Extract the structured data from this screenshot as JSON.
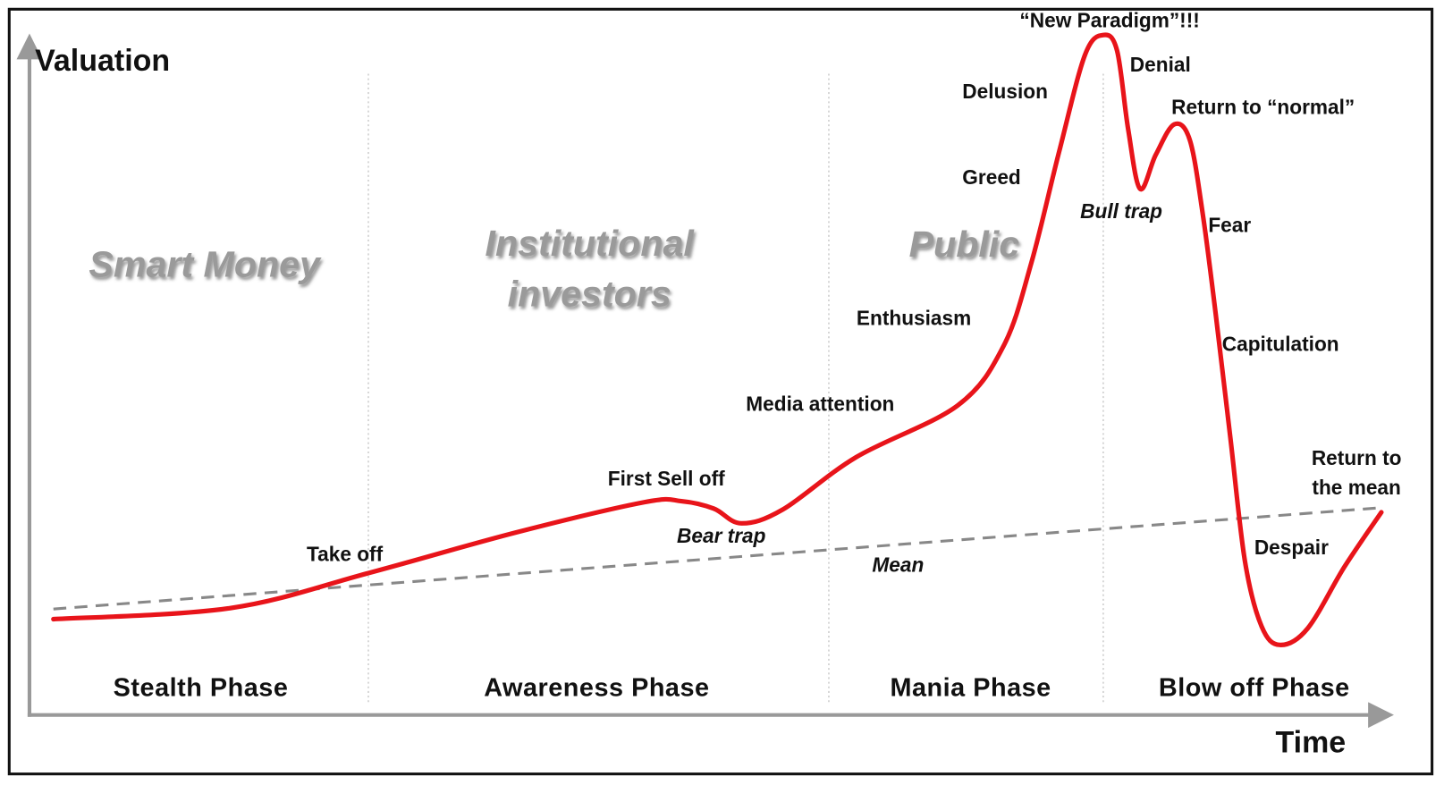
{
  "axes": {
    "y_label": "Valuation",
    "x_label": "Time"
  },
  "groups": [
    {
      "lines": [
        "Smart Money"
      ]
    },
    {
      "lines": [
        "Institutional",
        "investors"
      ]
    },
    {
      "lines": [
        "Public"
      ]
    }
  ],
  "phases": [
    "Stealth Phase",
    "Awareness Phase",
    "Mania Phase",
    "Blow off Phase"
  ],
  "annotations": [
    {
      "lines": [
        "“New Paradigm”!!!"
      ]
    },
    {
      "lines": [
        "Denial"
      ]
    },
    {
      "lines": [
        "Delusion"
      ]
    },
    {
      "lines": [
        "Return to “normal”"
      ]
    },
    {
      "lines": [
        "Greed"
      ]
    },
    {
      "lines": [
        "Bull trap"
      ]
    },
    {
      "lines": [
        "Fear"
      ]
    },
    {
      "lines": [
        "Enthusiasm"
      ]
    },
    {
      "lines": [
        "Capitulation"
      ]
    },
    {
      "lines": [
        "Media attention"
      ]
    },
    {
      "lines": [
        "Return to",
        "the mean"
      ]
    },
    {
      "lines": [
        "First Sell off"
      ]
    },
    {
      "lines": [
        "Bear trap"
      ]
    },
    {
      "lines": [
        "Despair"
      ]
    },
    {
      "lines": [
        "Take off"
      ]
    },
    {
      "lines": [
        "Mean"
      ]
    }
  ]
}
